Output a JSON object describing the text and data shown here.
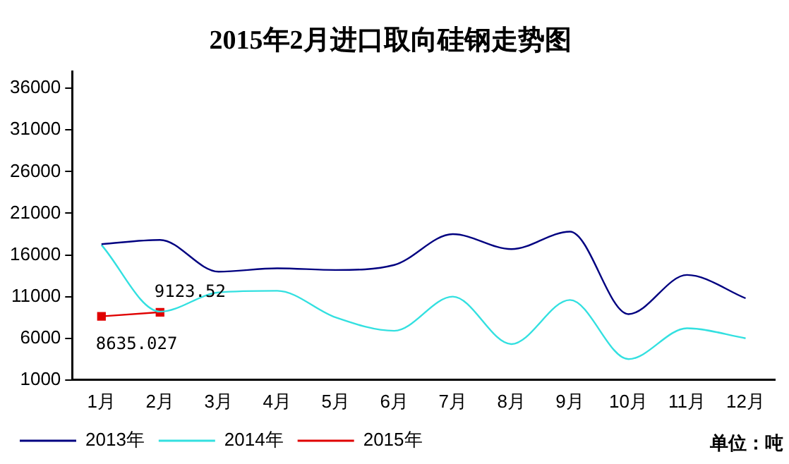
{
  "chart_data": {
    "type": "line",
    "title": "2015年2月进口取向硅钢走势图",
    "categories": [
      "1月",
      "2月",
      "3月",
      "4月",
      "5月",
      "6月",
      "7月",
      "8月",
      "9月",
      "10月",
      "11月",
      "12月"
    ],
    "series": [
      {
        "name": "2013年",
        "color": "#000080",
        "marker": "none",
        "values": [
          17300,
          17800,
          14000,
          14400,
          14200,
          14800,
          18500,
          16700,
          18800,
          8900,
          13600,
          10800
        ]
      },
      {
        "name": "2014年",
        "color": "#33e0e0",
        "marker": "none",
        "values": [
          17200,
          9200,
          11500,
          11700,
          8500,
          6900,
          11000,
          5300,
          10600,
          3500,
          7200,
          6000
        ]
      },
      {
        "name": "2015年",
        "color": "#e00000",
        "marker": "square",
        "values": [
          8635.027,
          9123.52,
          null,
          null,
          null,
          null,
          null,
          null,
          null,
          null,
          null,
          null
        ],
        "value_labels": [
          "8635.027",
          "9123.52",
          null,
          null,
          null,
          null,
          null,
          null,
          null,
          null,
          null,
          null
        ]
      }
    ],
    "ylim": [
      1000,
      38000
    ],
    "yticks": [
      1000,
      6000,
      11000,
      16000,
      21000,
      26000,
      31000,
      36000
    ],
    "grid": false,
    "legend": "bottom",
    "annotations": [
      "单位：吨"
    ]
  }
}
